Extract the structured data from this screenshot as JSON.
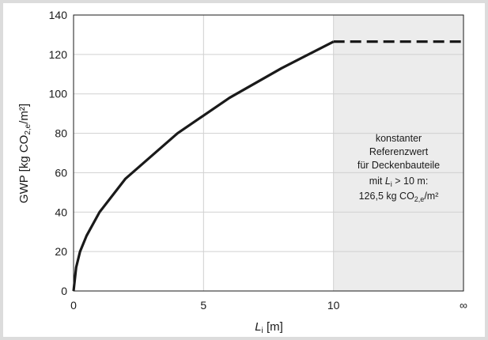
{
  "chart_data": {
    "type": "line",
    "x_ticks": [
      "0",
      "5",
      "10",
      "∞"
    ],
    "y_ticks": [
      0,
      20,
      40,
      60,
      80,
      100,
      120,
      140
    ],
    "xlim": [
      0,
      15
    ],
    "ylim": [
      0,
      140
    ],
    "xlabel": {
      "symbol": "L",
      "sub": "i",
      "unit": " [m]"
    },
    "ylabel": {
      "pre": "GWP [kg CO",
      "sub": "2,e",
      "post": "/m²]"
    },
    "grid": "vertical and horizontal",
    "series": [
      {
        "style": "solid",
        "color": "#1a1a1a",
        "x": [
          0,
          0.1,
          0.25,
          0.5,
          1,
          2,
          4,
          6,
          8,
          10
        ],
        "y": [
          0,
          12,
          20,
          28,
          40,
          57,
          80,
          98,
          113,
          126.5
        ]
      },
      {
        "style": "dashed",
        "color": "#1a1a1a",
        "x": [
          10,
          15
        ],
        "y": [
          126.5,
          126.5
        ]
      }
    ],
    "shaded_region": {
      "x_from": 10,
      "x_to": 15,
      "color": "#ececec"
    },
    "annotation": {
      "line1": "konstanter",
      "line2": "Referenzwert",
      "line3": "für Deckenbauteile",
      "line4_pre": "mit ",
      "line4_sym": "L",
      "line4_sub": "i",
      "line4_post": " > 10 m:",
      "line5_pre": "126,5 kg CO",
      "line5_sub": "2,e",
      "line5_post": "/m²"
    }
  }
}
